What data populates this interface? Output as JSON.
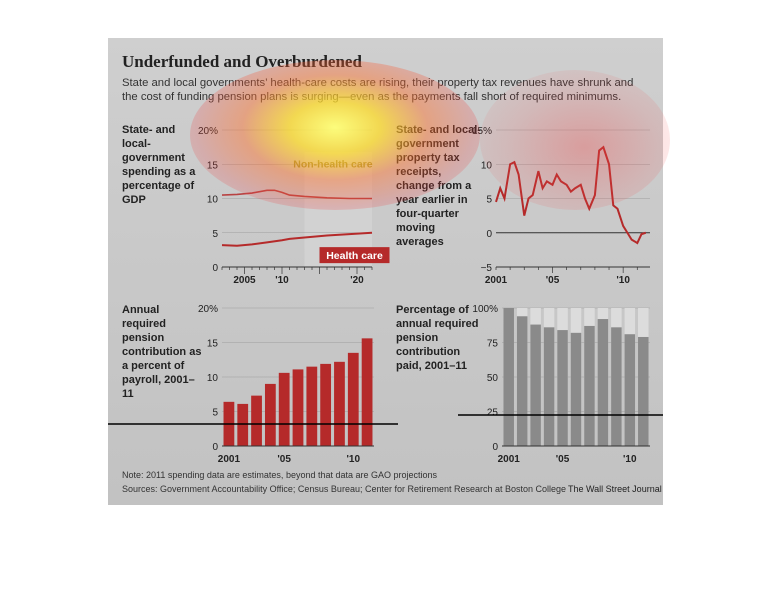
{
  "header": {
    "title": "Underfunded and Overburdened",
    "subtitle": "State and local governments’ health-care costs are rising, their property tax revenues have shrunk and the cost of funding pension plans is surging—even as the payments fall short of required minimums."
  },
  "footer": {
    "note": "Note: 2011 spending data are estimates, beyond that data are GAO projections",
    "sources": "Sources: Government Accountability Office; Census Bureau; Center for Retirement Research at Boston College",
    "brand": "The Wall Street Journal"
  },
  "colors": {
    "red": "#b52a2a",
    "gray_bar": "#8a8a8a",
    "light_bar": "#dcdcdc",
    "gridline": "#9e9e9e"
  },
  "chart_data": [
    {
      "type": "line",
      "title": "State- and local-government spending as a percentage of GDP",
      "x_ticks": [
        "2005",
        "'10",
        "'20"
      ],
      "y_ticks": [
        "0",
        "5",
        "10",
        "15",
        "20%"
      ],
      "ylim": [
        0,
        20
      ],
      "series": [
        {
          "name": "Non-health care",
          "x": [
            2002,
            2004,
            2006,
            2008,
            2009,
            2010,
            2011,
            2013,
            2016,
            2019,
            2022
          ],
          "values": [
            10.5,
            10.6,
            10.8,
            11.2,
            11.2,
            10.9,
            10.5,
            10.3,
            10.1,
            10.0,
            10.0
          ]
        },
        {
          "name": "Health care",
          "x": [
            2002,
            2004,
            2006,
            2008,
            2010,
            2011,
            2013,
            2016,
            2019,
            2022
          ],
          "values": [
            3.2,
            3.1,
            3.3,
            3.6,
            3.9,
            4.1,
            4.3,
            4.6,
            4.8,
            5.0
          ]
        }
      ]
    },
    {
      "type": "line",
      "title": "State- and local-government property tax receipts, change from a year earlier in four-quarter moving averages",
      "x_ticks": [
        "2001",
        "'05",
        "'10"
      ],
      "y_ticks": [
        "−5",
        "0",
        "5",
        "10",
        "15%"
      ],
      "ylim": [
        -5,
        15
      ],
      "series": [
        {
          "name": "Property tax receipts",
          "x": [
            2001,
            2001.3,
            2001.6,
            2002,
            2002.3,
            2002.6,
            2003,
            2003.3,
            2003.6,
            2004,
            2004.3,
            2004.6,
            2005,
            2005.3,
            2005.6,
            2006,
            2006.3,
            2006.6,
            2007,
            2007.3,
            2007.6,
            2008,
            2008.3,
            2008.6,
            2009,
            2009.3,
            2009.6,
            2010,
            2010.3,
            2010.6,
            2011,
            2011.3,
            2011.6
          ],
          "values": [
            4.5,
            6.5,
            5.0,
            10.0,
            10.3,
            8.5,
            2.5,
            5.0,
            5.5,
            9.0,
            6.5,
            7.5,
            7.0,
            8.5,
            7.5,
            7.0,
            6.0,
            6.5,
            7.0,
            5.0,
            3.5,
            5.5,
            12.0,
            12.5,
            10.0,
            4.0,
            3.5,
            1.0,
            0.0,
            -1.0,
            -1.5,
            -0.2,
            0.0
          ]
        }
      ]
    },
    {
      "type": "bar",
      "title": "Annual required pension contribution as a percent of payroll, 2001–11",
      "categories": [
        "2001",
        "2002",
        "2003",
        "2004",
        "2005",
        "2006",
        "2007",
        "2008",
        "2009",
        "2010",
        "2011"
      ],
      "x_ticks": [
        "2001",
        "'05",
        "'10"
      ],
      "y_ticks": [
        "0",
        "5",
        "10",
        "15",
        "20%"
      ],
      "ylim": [
        0,
        20
      ],
      "values": [
        6.4,
        6.1,
        7.3,
        9.0,
        10.6,
        11.1,
        11.5,
        11.9,
        12.2,
        13.5,
        15.6
      ]
    },
    {
      "type": "bar",
      "title": "Percentage of annual required pension contribution paid, 2001–11",
      "categories": [
        "2001",
        "2002",
        "2003",
        "2004",
        "2005",
        "2006",
        "2007",
        "2008",
        "2009",
        "2010",
        "2011"
      ],
      "x_ticks": [
        "2001",
        "'05",
        "'10"
      ],
      "y_ticks": [
        "0",
        "25",
        "50",
        "75",
        "100%"
      ],
      "ylim": [
        0,
        100
      ],
      "values": [
        100,
        94,
        88,
        86,
        84,
        82,
        87,
        92,
        86,
        81,
        79
      ]
    }
  ],
  "panels": {
    "health_label_series": "Health care",
    "nonhealth_label_series": "Non-health care"
  }
}
